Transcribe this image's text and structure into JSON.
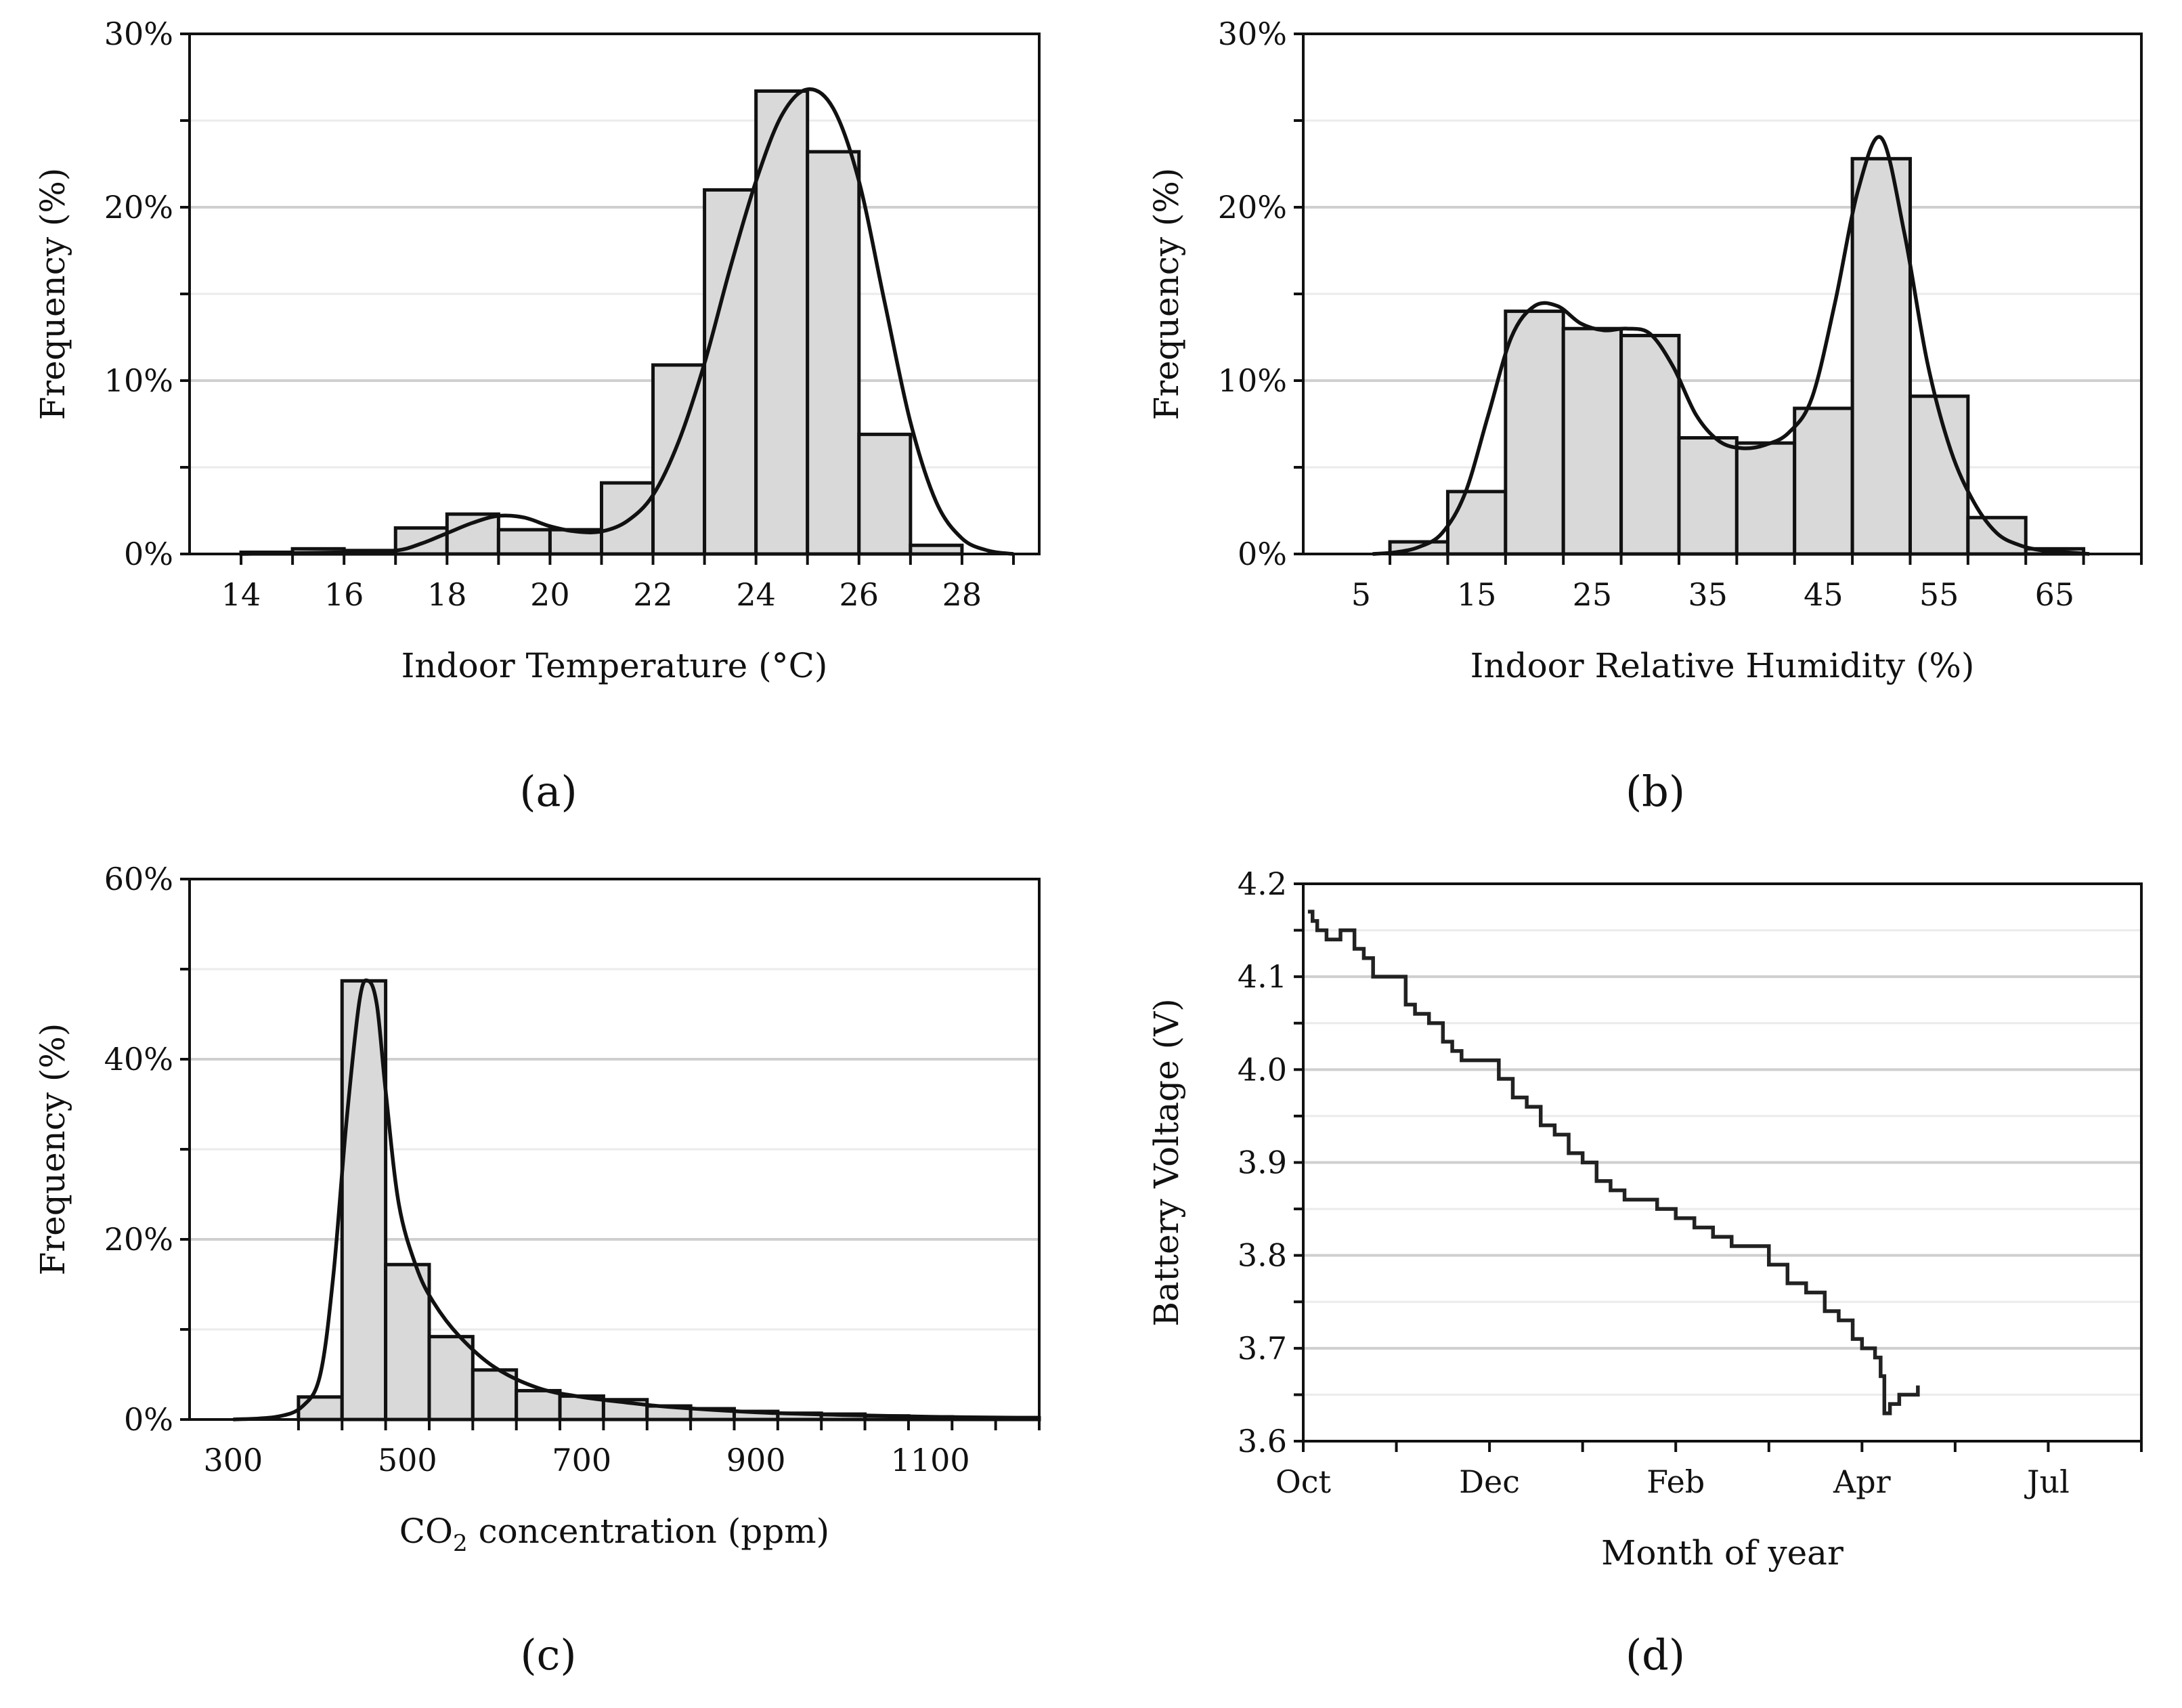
{
  "figure_labels": [
    "(a)",
    "(b)",
    "(c)",
    "(d)"
  ],
  "chart_data": [
    {
      "id": "a",
      "type": "bar",
      "panel_label": "(a)",
      "xlabel": "Indoor Temperature (°C)",
      "ylabel": "Frequency (%)",
      "xlim": [
        13,
        29.5
      ],
      "ylim": [
        0,
        30
      ],
      "y_ticks": [
        0,
        10,
        20,
        30
      ],
      "y_minor_ticks": [
        5,
        15,
        25
      ],
      "y_tick_labels": [
        "0%",
        "10%",
        "20%",
        "30%"
      ],
      "x_ticks": [
        14,
        16,
        18,
        20,
        22,
        24,
        26,
        28
      ],
      "x_tick_labels": [
        "14",
        "16",
        "18",
        "20",
        "22",
        "24",
        "26",
        "28"
      ],
      "bin_width": 1,
      "bin_edges": [
        14,
        15,
        16,
        17,
        18,
        19,
        20,
        21,
        22,
        23,
        24,
        25,
        26,
        27,
        28
      ],
      "values": [
        0.1,
        0.3,
        0.2,
        1.5,
        2.3,
        1.4,
        1.4,
        4.1,
        10.9,
        21.0,
        26.7,
        23.2,
        6.9,
        0.5
      ],
      "fit": {
        "x": [
          14,
          15,
          16,
          17,
          17.5,
          18,
          18.5,
          19,
          19.5,
          20,
          20.5,
          21,
          21.5,
          22,
          22.5,
          23,
          23.5,
          24,
          24.5,
          25,
          25.5,
          26,
          26.5,
          27,
          27.5,
          28,
          28.5,
          29
        ],
        "y": [
          0.0,
          0.05,
          0.1,
          0.2,
          0.6,
          1.2,
          1.8,
          2.2,
          2.1,
          1.6,
          1.3,
          1.3,
          1.9,
          3.4,
          6.5,
          11.0,
          16.5,
          21.5,
          25.3,
          26.8,
          25.7,
          21.5,
          14.5,
          7.6,
          3.0,
          0.9,
          0.2,
          0.0
        ]
      }
    },
    {
      "id": "b",
      "type": "bar",
      "panel_label": "(b)",
      "xlabel": "Indoor Relative Humidity (%)",
      "ylabel": "Frequency (%)",
      "xlim": [
        0,
        72.5
      ],
      "ylim": [
        0,
        30
      ],
      "y_ticks": [
        0,
        10,
        20,
        30
      ],
      "y_minor_ticks": [
        5,
        15,
        25
      ],
      "y_tick_labels": [
        "0%",
        "10%",
        "20%",
        "30%"
      ],
      "x_ticks": [
        5,
        15,
        25,
        35,
        45,
        55,
        65
      ],
      "x_tick_labels": [
        "5",
        "15",
        "25",
        "35",
        "45",
        "55",
        "65"
      ],
      "bin_width": 5,
      "bin_edges": [
        7.5,
        12.5,
        17.5,
        22.5,
        27.5,
        32.5,
        37.5,
        42.5,
        47.5,
        52.5,
        57.5,
        62.5,
        67.5
      ],
      "values": [
        0.7,
        3.6,
        14.0,
        13.0,
        12.6,
        6.7,
        6.4,
        8.4,
        22.8,
        9.1,
        2.1,
        0.3
      ],
      "fit": {
        "x": [
          6,
          8,
          10,
          12,
          14,
          16,
          18,
          20,
          22,
          24,
          26,
          28,
          30,
          32,
          34,
          36,
          38,
          40,
          42,
          44,
          46,
          48,
          50,
          52,
          54,
          56,
          58,
          60,
          62,
          64,
          66,
          68
        ],
        "y": [
          0.0,
          0.1,
          0.4,
          1.2,
          3.5,
          8.0,
          12.5,
          14.3,
          14.3,
          13.3,
          12.9,
          13.0,
          12.7,
          10.8,
          8.0,
          6.5,
          6.1,
          6.3,
          7.0,
          9.0,
          14.5,
          21.0,
          24.0,
          18.5,
          11.0,
          6.0,
          3.0,
          1.2,
          0.5,
          0.2,
          0.1,
          0.0
        ]
      }
    },
    {
      "id": "c",
      "type": "bar",
      "panel_label": "(c)",
      "xlabel_main": "CO",
      "xlabel_sub": "2",
      "xlabel_rest": " concentration (ppm)",
      "ylabel": "Frequency (%)",
      "xlim": [
        250,
        1225
      ],
      "ylim": [
        0,
        60
      ],
      "y_ticks": [
        0,
        20,
        40,
        60
      ],
      "y_minor_ticks": [
        10,
        30,
        50
      ],
      "y_tick_labels": [
        "0%",
        "20%",
        "40%",
        "60%"
      ],
      "x_ticks": [
        300,
        500,
        700,
        900,
        1100
      ],
      "x_tick_labels": [
        "300",
        "500",
        "700",
        "900",
        "1100"
      ],
      "bin_width": 50,
      "bin_edges": [
        375,
        425,
        475,
        525,
        575,
        625,
        675,
        725,
        775,
        825,
        875,
        925,
        975,
        1025,
        1075,
        1125,
        1175,
        1225
      ],
      "values": [
        2.5,
        48.7,
        17.2,
        9.2,
        5.5,
        3.2,
        2.6,
        2.2,
        1.5,
        1.2,
        0.9,
        0.7,
        0.6,
        0.4,
        0.3,
        0.2,
        0.2
      ],
      "fit": {
        "x": [
          300,
          350,
          380,
          400,
          415,
          430,
          445,
          455,
          465,
          475,
          490,
          510,
          530,
          560,
          600,
          650,
          700,
          750,
          800,
          900,
          1000,
          1100,
          1200,
          1225
        ],
        "y": [
          0.0,
          0.3,
          1.5,
          5.0,
          16.0,
          33.0,
          46.5,
          48.7,
          46.0,
          36.5,
          24.0,
          17.0,
          13.0,
          9.2,
          5.8,
          3.5,
          2.5,
          1.9,
          1.4,
          0.8,
          0.5,
          0.3,
          0.2,
          0.2
        ]
      }
    },
    {
      "id": "d",
      "type": "line",
      "panel_label": "(d)",
      "xlabel": "Month of year",
      "ylabel": "Battery Voltage (V)",
      "xlim": [
        0,
        9
      ],
      "ylim": [
        3.6,
        4.2
      ],
      "y_ticks": [
        3.6,
        3.7,
        3.8,
        3.9,
        4.0,
        4.1,
        4.2
      ],
      "y_minor_ticks": [
        3.65,
        3.75,
        3.85,
        3.95,
        4.05,
        4.15
      ],
      "y_tick_labels": [
        "3.6",
        "3.7",
        "3.8",
        "3.9",
        "4.0",
        "4.1",
        "4.2"
      ],
      "x_ticks": [
        0,
        2,
        4,
        6,
        8
      ],
      "x_minor_ticks": [
        1,
        3,
        5,
        7,
        9
      ],
      "x_tick_labels": [
        "Oct",
        "Dec",
        "Feb",
        "Apr",
        "Jul"
      ],
      "series": [
        {
          "name": "Battery Voltage",
          "x": [
            0.05,
            0.1,
            0.15,
            0.25,
            0.4,
            0.55,
            0.65,
            0.75,
            1.0,
            1.1,
            1.2,
            1.35,
            1.5,
            1.6,
            1.7,
            1.85,
            2.1,
            2.25,
            2.4,
            2.55,
            2.7,
            2.85,
            3.0,
            3.15,
            3.3,
            3.45,
            3.6,
            3.8,
            4.0,
            4.2,
            4.4,
            4.6,
            4.8,
            5.0,
            5.2,
            5.4,
            5.6,
            5.75,
            5.9,
            6.0,
            6.08,
            6.14,
            6.2,
            6.24,
            6.3,
            6.4,
            6.5,
            6.6
          ],
          "y": [
            4.17,
            4.16,
            4.15,
            4.14,
            4.15,
            4.13,
            4.12,
            4.1,
            4.1,
            4.07,
            4.06,
            4.05,
            4.03,
            4.02,
            4.01,
            4.01,
            3.99,
            3.97,
            3.96,
            3.94,
            3.93,
            3.91,
            3.9,
            3.88,
            3.87,
            3.86,
            3.86,
            3.85,
            3.84,
            3.83,
            3.82,
            3.81,
            3.81,
            3.79,
            3.77,
            3.76,
            3.74,
            3.73,
            3.71,
            3.7,
            3.7,
            3.69,
            3.67,
            3.63,
            3.64,
            3.65,
            3.65,
            3.66
          ]
        }
      ]
    }
  ]
}
